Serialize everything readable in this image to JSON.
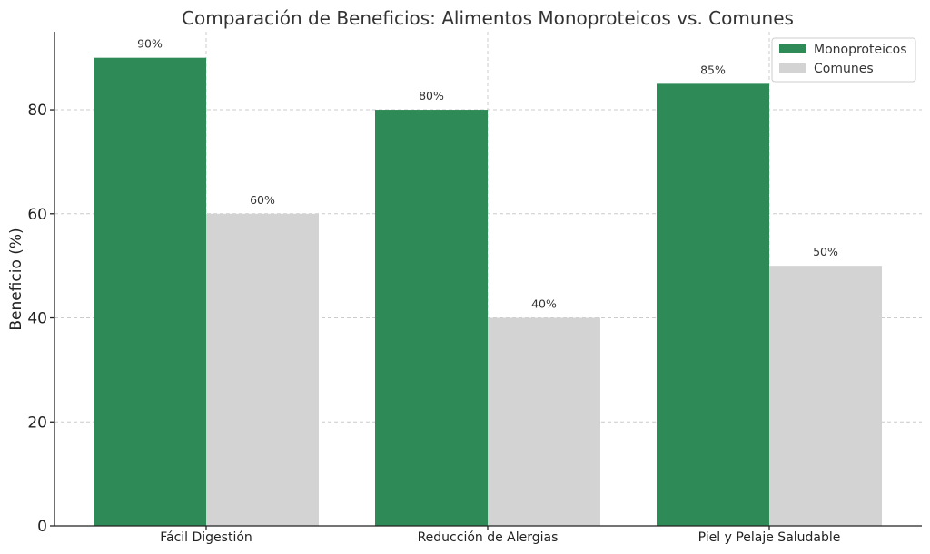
{
  "chart_data": {
    "type": "bar",
    "title": "Comparación de Beneficios: Alimentos Monoproteicos vs. Comunes",
    "xlabel": "",
    "ylabel": "Beneficio (%)",
    "ylim": [
      0,
      95
    ],
    "yticks": [
      0,
      20,
      40,
      60,
      80
    ],
    "grid": true,
    "legend_position": "top-right",
    "categories": [
      "Fácil Digestión",
      "Reducción de Alergias",
      "Piel y Pelaje Saludable"
    ],
    "series": [
      {
        "name": "Monoproteicos",
        "color": "#2e8b57",
        "values": [
          90,
          80,
          85
        ],
        "labels": [
          "90%",
          "80%",
          "85%"
        ]
      },
      {
        "name": "Comunes",
        "color": "#d3d3d3",
        "values": [
          60,
          40,
          50
        ],
        "labels": [
          "60%",
          "40%",
          "50%"
        ]
      }
    ]
  }
}
